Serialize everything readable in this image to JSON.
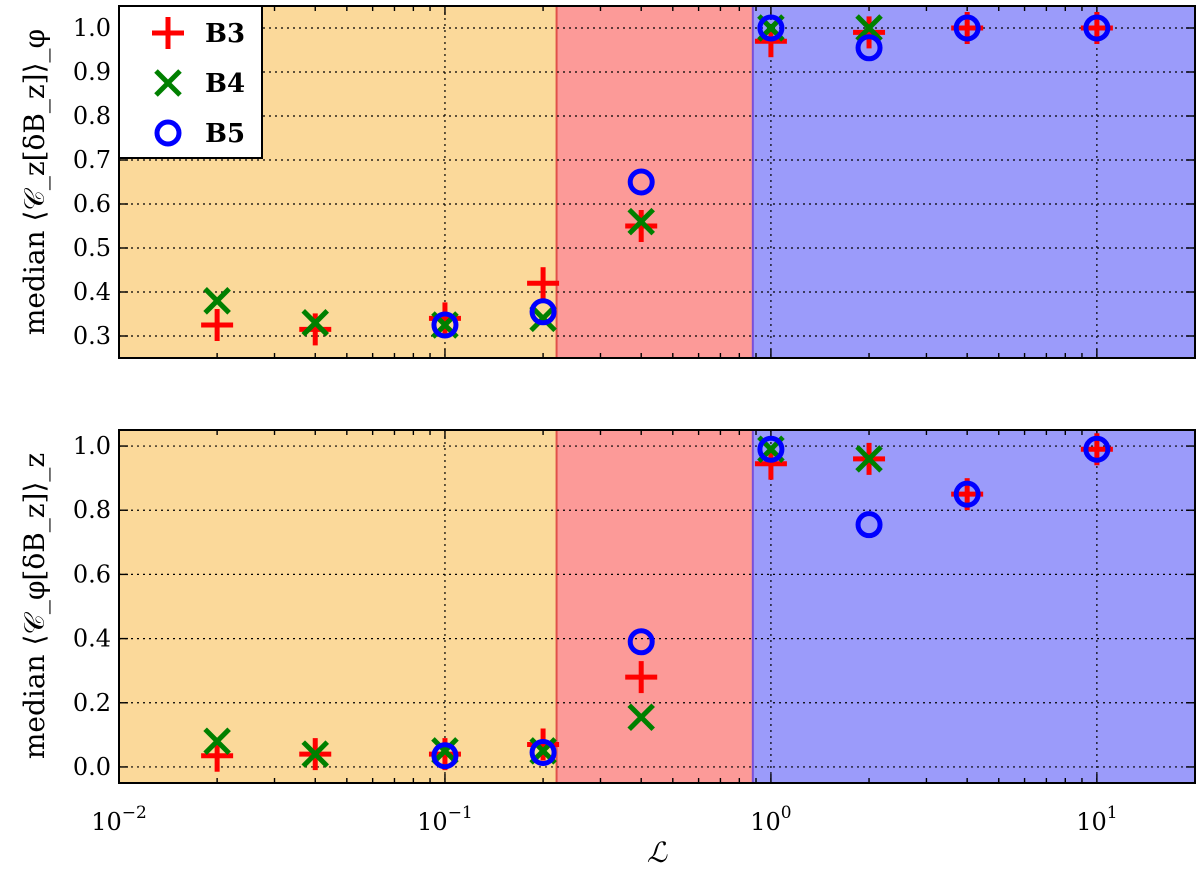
{
  "chart_data": [
    {
      "type": "scatter",
      "panel": "top",
      "ylabel": "median ⟨𝒞_z[δB_z]⟩_φ",
      "xscale": "log",
      "xlim": [
        0.01,
        20
      ],
      "ylim": [
        0.25,
        1.05
      ],
      "yticks": [
        0.3,
        0.4,
        0.5,
        0.6,
        0.7,
        0.8,
        0.9,
        1.0
      ],
      "ytick_labels": [
        "0.3",
        "0.4",
        "0.5",
        "0.6",
        "0.7",
        "0.8",
        "0.9",
        "1.0"
      ],
      "grid": true,
      "regions": [
        {
          "from": 0.01,
          "to": 0.22,
          "color": "#fbd99a"
        },
        {
          "from": 0.22,
          "to": 0.88,
          "color": "#fc9a98"
        },
        {
          "from": 0.88,
          "to": 20,
          "color": "#9b9bfa"
        }
      ],
      "legend": {
        "placement": "top-left"
      },
      "series": [
        {
          "name": "B3",
          "marker": "plus",
          "color": "#ff0000",
          "x": [
            0.02,
            0.04,
            0.1,
            0.2,
            0.4,
            1,
            2,
            4,
            10
          ],
          "y": [
            0.325,
            0.315,
            0.34,
            0.42,
            0.55,
            0.97,
            0.99,
            1.0,
            1.0
          ]
        },
        {
          "name": "B4",
          "marker": "x",
          "color": "#008000",
          "x": [
            0.02,
            0.04,
            0.1,
            0.2,
            0.4,
            1,
            2
          ],
          "y": [
            0.38,
            0.33,
            0.325,
            0.34,
            0.56,
            1.0,
            1.0
          ]
        },
        {
          "name": "B5",
          "marker": "circle",
          "color": "#0000ff",
          "x": [
            0.1,
            0.2,
            0.4,
            1,
            2,
            4,
            10
          ],
          "y": [
            0.325,
            0.355,
            0.65,
            1.0,
            0.955,
            1.0,
            1.0
          ]
        }
      ]
    },
    {
      "type": "scatter",
      "panel": "bottom",
      "ylabel": "median ⟨𝒞_φ[δB_z]⟩_z",
      "xlabel": "ℒ",
      "xscale": "log",
      "xlim": [
        0.01,
        20
      ],
      "ylim": [
        -0.05,
        1.05
      ],
      "yticks": [
        0.0,
        0.2,
        0.4,
        0.6,
        0.8,
        1.0
      ],
      "ytick_labels": [
        "0.0",
        "0.2",
        "0.4",
        "0.6",
        "0.8",
        "1.0"
      ],
      "xticks": [
        0.01,
        0.1,
        1,
        10
      ],
      "xtick_labels": [
        {
          "base": "10",
          "exp": "−2"
        },
        {
          "base": "10",
          "exp": "−1"
        },
        {
          "base": "10",
          "exp": "0"
        },
        {
          "base": "10",
          "exp": "1"
        }
      ],
      "grid": true,
      "regions": [
        {
          "from": 0.01,
          "to": 0.22,
          "color": "#fbd99a"
        },
        {
          "from": 0.22,
          "to": 0.88,
          "color": "#fc9a98"
        },
        {
          "from": 0.88,
          "to": 20,
          "color": "#9b9bfa"
        }
      ],
      "series": [
        {
          "name": "B3",
          "marker": "plus",
          "color": "#ff0000",
          "x": [
            0.02,
            0.04,
            0.1,
            0.2,
            0.4,
            1,
            2,
            4,
            10
          ],
          "y": [
            0.035,
            0.04,
            0.04,
            0.07,
            0.28,
            0.945,
            0.96,
            0.85,
            0.99
          ]
        },
        {
          "name": "B4",
          "marker": "x",
          "color": "#008000",
          "x": [
            0.02,
            0.04,
            0.1,
            0.2,
            0.4,
            1,
            2
          ],
          "y": [
            0.08,
            0.04,
            0.05,
            0.05,
            0.155,
            0.99,
            0.96
          ]
        },
        {
          "name": "B5",
          "marker": "circle",
          "color": "#0000ff",
          "x": [
            0.1,
            0.2,
            0.4,
            1,
            2,
            4,
            10
          ],
          "y": [
            0.035,
            0.045,
            0.39,
            0.99,
            0.755,
            0.85,
            0.99
          ]
        }
      ]
    }
  ]
}
